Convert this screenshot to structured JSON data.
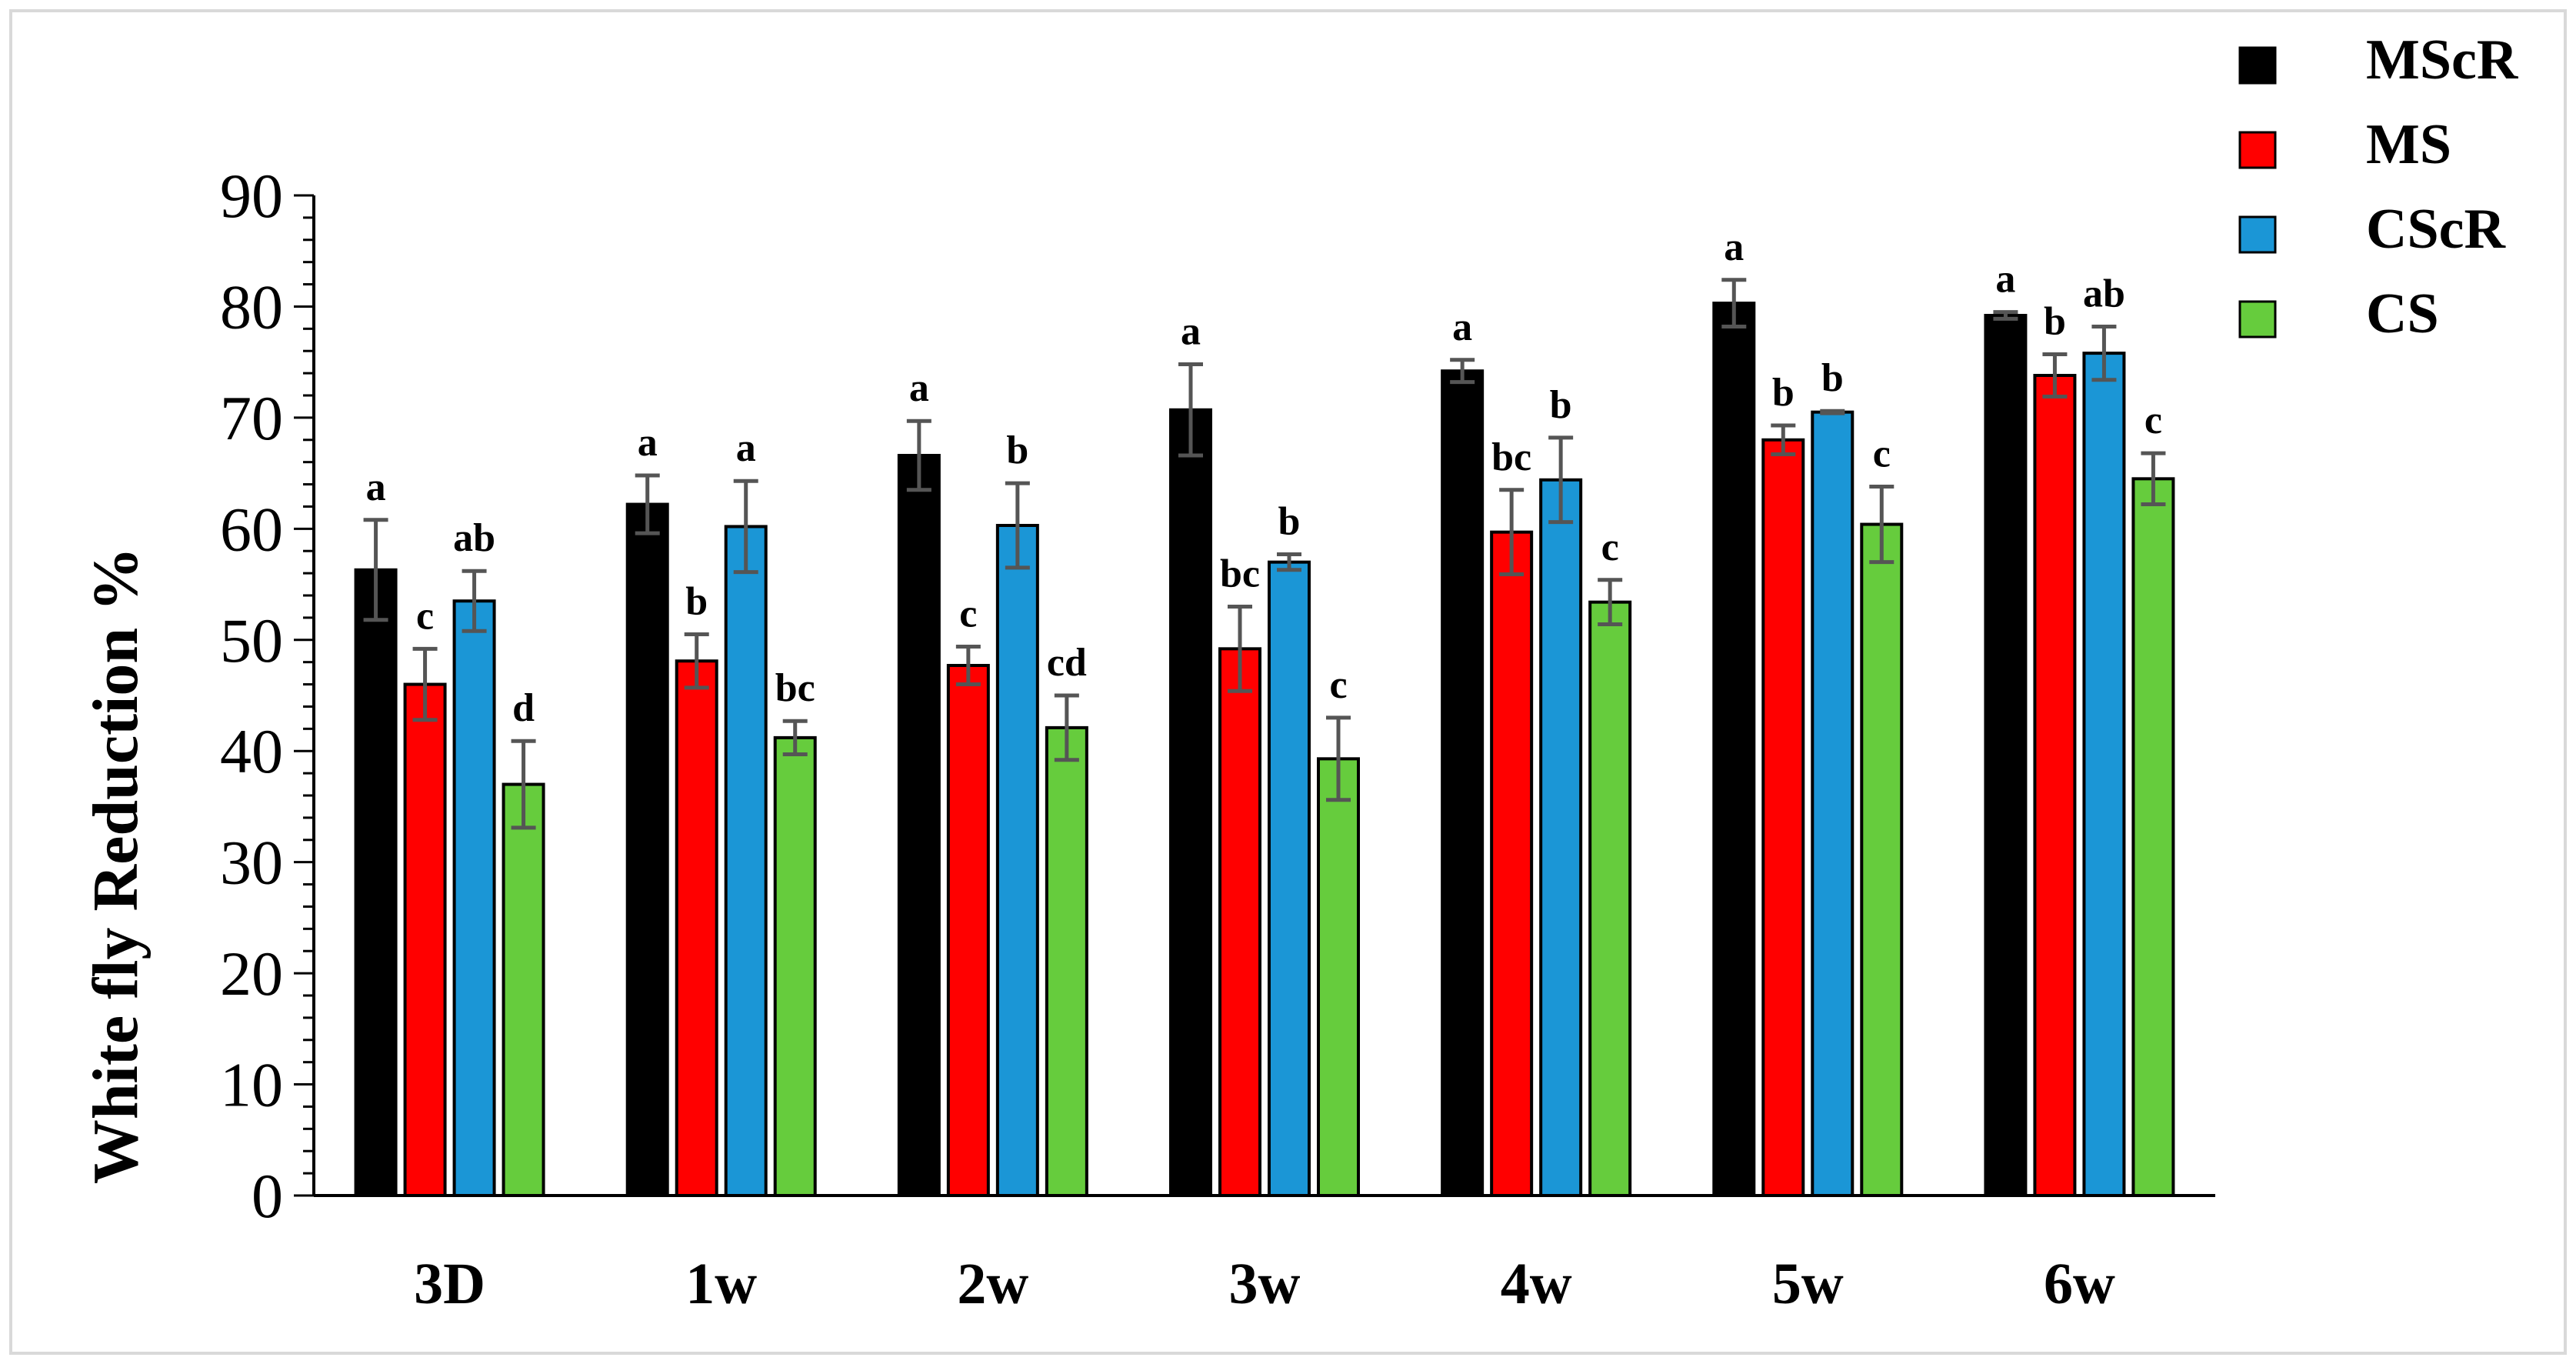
{
  "chart_data": {
    "type": "bar",
    "title": "",
    "xlabel": "",
    "ylabel": "White fly Reduction %",
    "ylim": [
      0,
      90
    ],
    "yticks": [
      0,
      10,
      20,
      30,
      40,
      50,
      60,
      70,
      80,
      90
    ],
    "grid": false,
    "legend_position": "top-right",
    "categories": [
      "3D",
      "1w",
      "2w",
      "3w",
      "4w",
      "5w",
      "6w"
    ],
    "series": [
      {
        "name": "MScR",
        "color": "#000000",
        "values": [
          56.3,
          62.2,
          66.6,
          70.7,
          74.2,
          80.3,
          79.2
        ],
        "errors": [
          4.5,
          2.6,
          3.1,
          4.1,
          1.0,
          2.1,
          0.3
        ],
        "labels": [
          "a",
          "a",
          "a",
          "a",
          "a",
          "a",
          "a"
        ]
      },
      {
        "name": "MS",
        "color": "#ff0000",
        "values": [
          46.0,
          48.1,
          47.7,
          49.2,
          59.7,
          68.0,
          73.8
        ],
        "errors": [
          3.2,
          2.4,
          1.7,
          3.8,
          3.8,
          1.3,
          1.9
        ],
        "labels": [
          "c",
          "b",
          "c",
          "bc",
          "bc",
          "b",
          "b"
        ]
      },
      {
        "name": "CScR",
        "color": "#1b96d6",
        "values": [
          53.5,
          60.2,
          60.3,
          57.0,
          64.4,
          70.5,
          75.8
        ],
        "errors": [
          2.7,
          4.1,
          3.8,
          0.7,
          3.8,
          0.1,
          2.4
        ],
        "labels": [
          "ab",
          "a",
          "b",
          "b",
          "b",
          "b",
          "ab"
        ]
      },
      {
        "name": "CS",
        "color": "#66cc3d",
        "values": [
          37.0,
          41.2,
          42.1,
          39.3,
          53.4,
          60.4,
          64.5
        ],
        "errors": [
          3.9,
          1.5,
          2.9,
          3.7,
          2.0,
          3.4,
          2.3
        ],
        "labels": [
          "d",
          "bc",
          "cd",
          "c",
          "c",
          "c",
          "c"
        ]
      }
    ]
  }
}
